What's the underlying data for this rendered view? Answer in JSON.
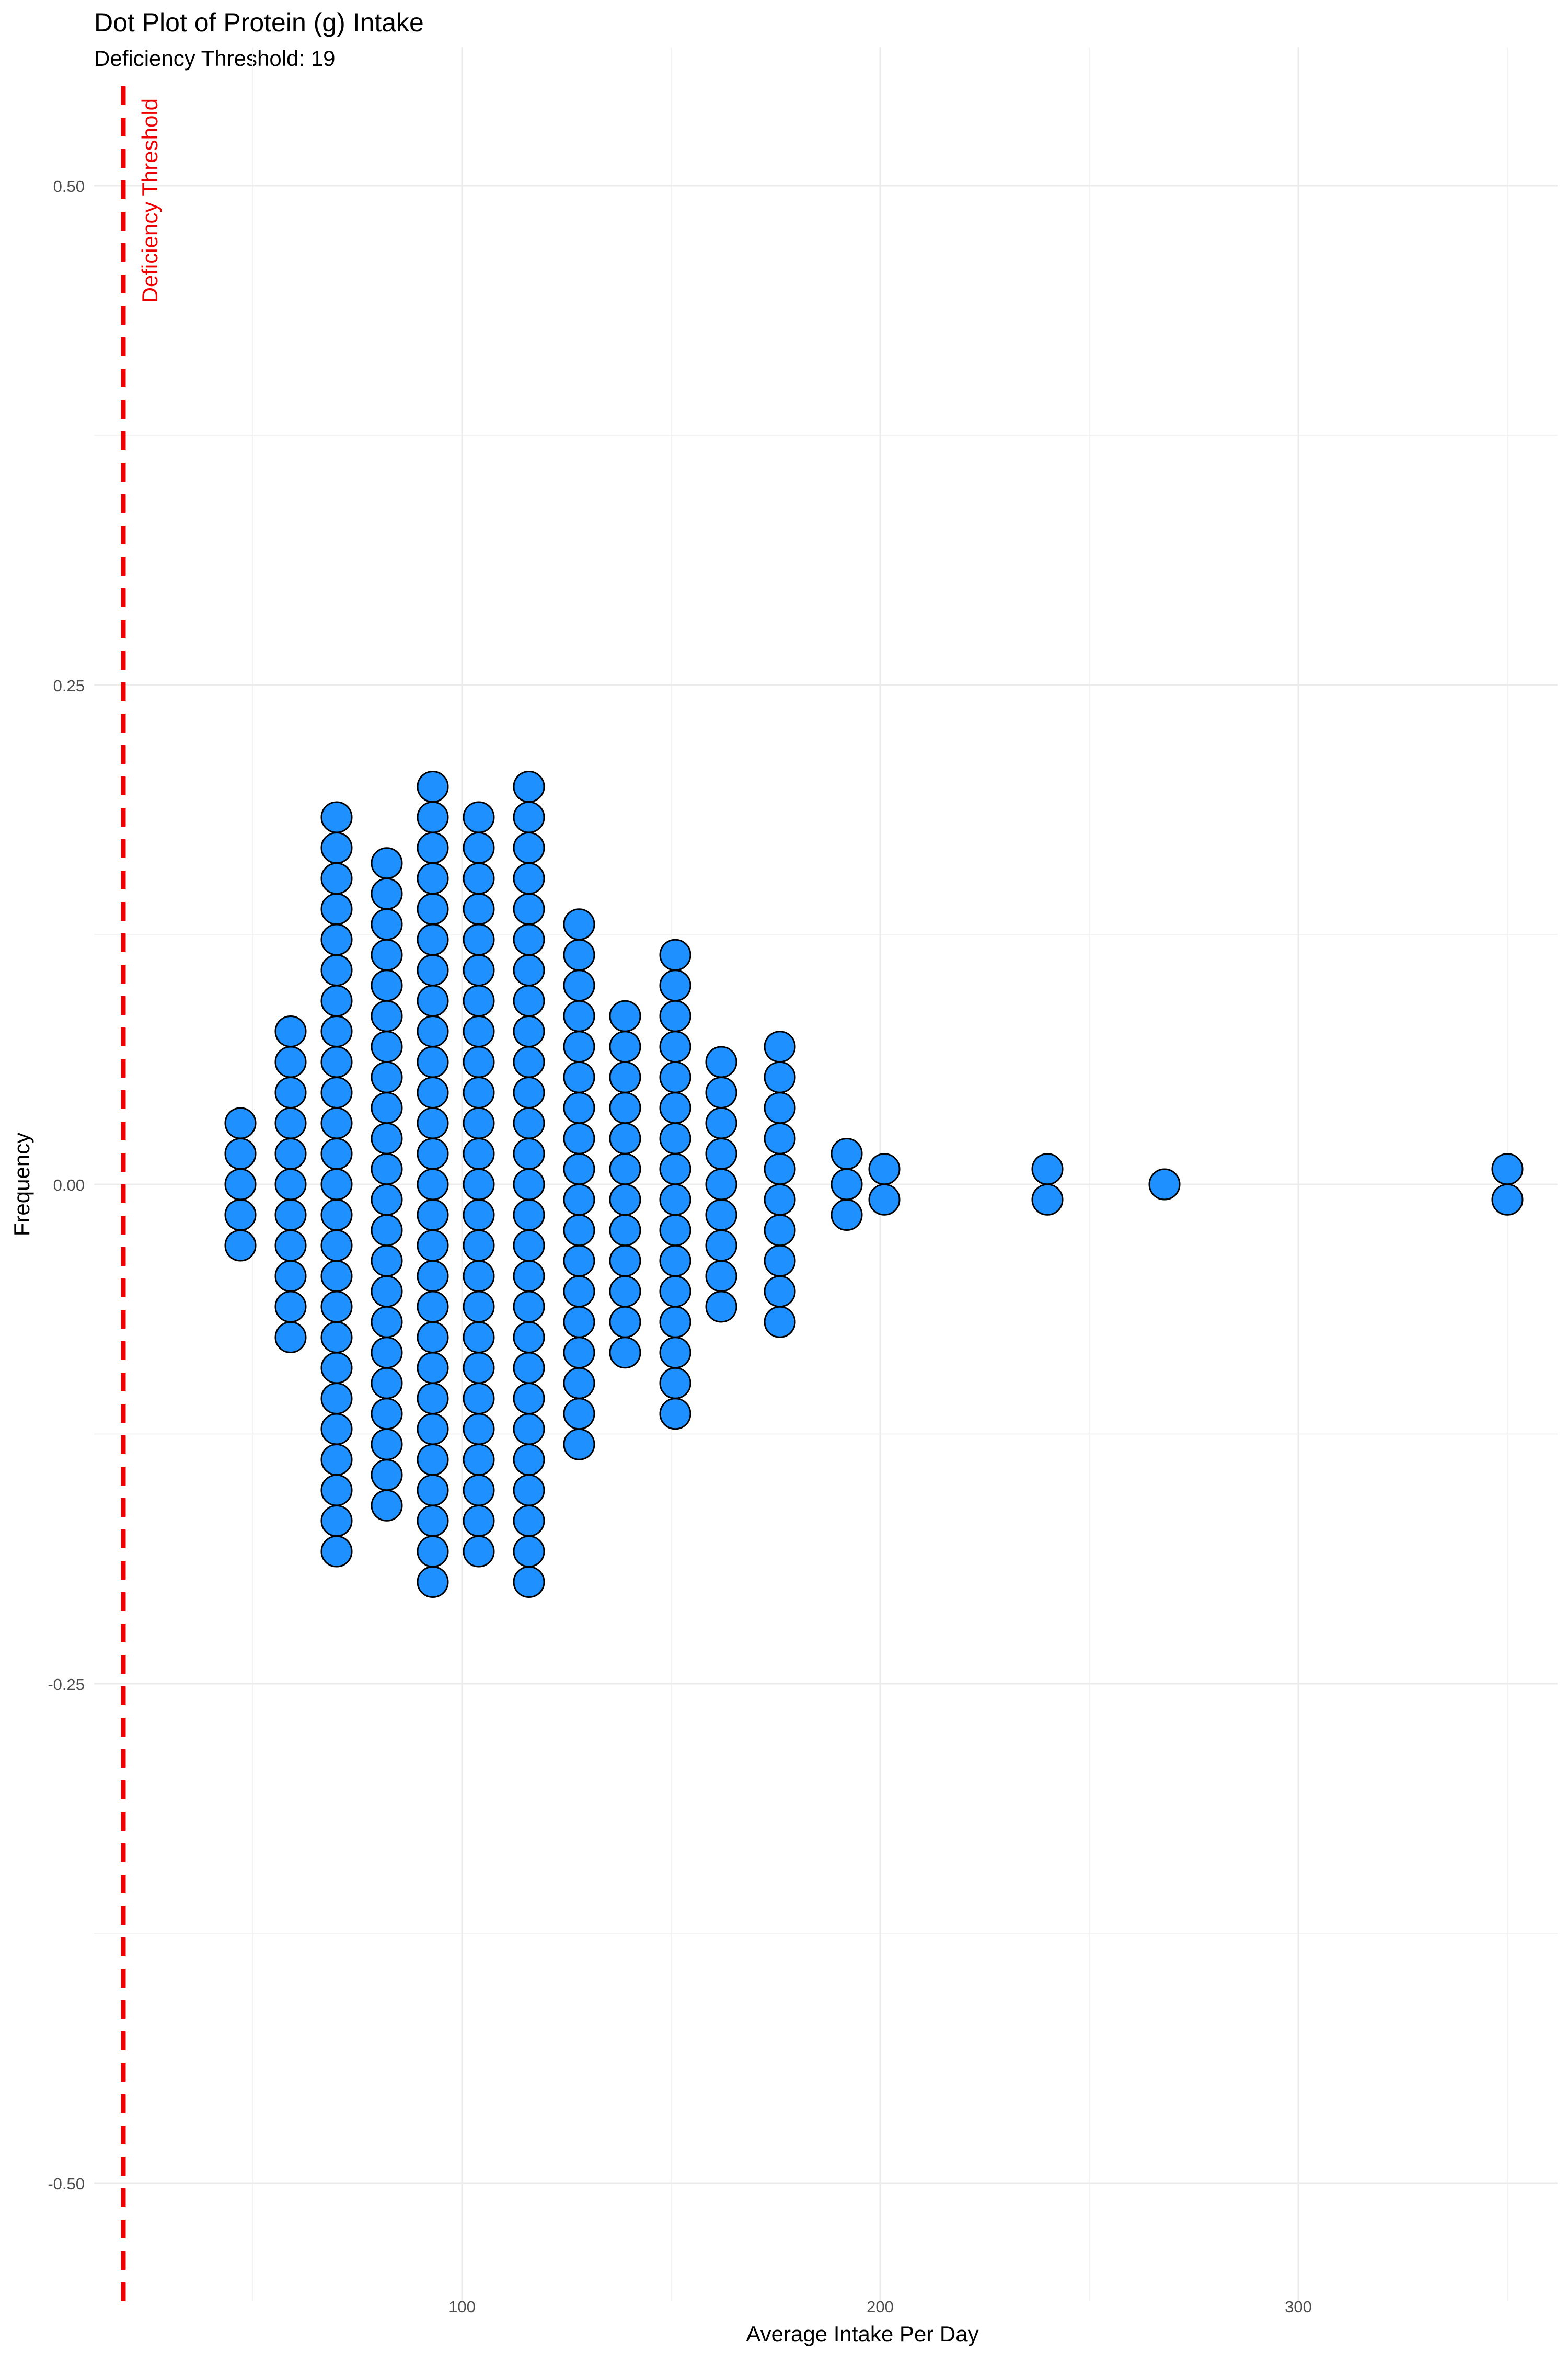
{
  "chart_data": {
    "type": "dotplot",
    "title": "Dot Plot of Protein (g) Intake",
    "subtitle": "Deficiency Threshold: 19",
    "xlabel": "Average Intake Per Day",
    "ylabel": "Frequency",
    "xlim": [
      12,
      362
    ],
    "ylim": [
      -0.5,
      0.5
    ],
    "x_ticks": [
      100,
      200,
      300
    ],
    "y_ticks": [
      0.5,
      0.25,
      0.0,
      -0.25,
      -0.5
    ],
    "y_tick_labels": [
      "0.50",
      "0.25",
      "0.00",
      "-0.25",
      "-0.50"
    ],
    "grid": true,
    "threshold": {
      "value": 19,
      "label": "Deficiency Threshold",
      "color": "#ee0000"
    },
    "dot_fill": "#1e90ff",
    "dot_stroke": "#000000",
    "stacks": [
      {
        "x": 47,
        "count": 5
      },
      {
        "x": 59,
        "count": 11
      },
      {
        "x": 70,
        "count": 25
      },
      {
        "x": 82,
        "count": 22
      },
      {
        "x": 93,
        "count": 27
      },
      {
        "x": 104,
        "count": 25
      },
      {
        "x": 116,
        "count": 27
      },
      {
        "x": 128,
        "count": 18
      },
      {
        "x": 139,
        "count": 12
      },
      {
        "x": 151,
        "count": 16
      },
      {
        "x": 162,
        "count": 9
      },
      {
        "x": 176,
        "count": 10
      },
      {
        "x": 192,
        "count": 3
      },
      {
        "x": 201,
        "count": 2
      },
      {
        "x": 240,
        "count": 2
      },
      {
        "x": 268,
        "count": 1
      },
      {
        "x": 350,
        "count": 2
      }
    ]
  }
}
